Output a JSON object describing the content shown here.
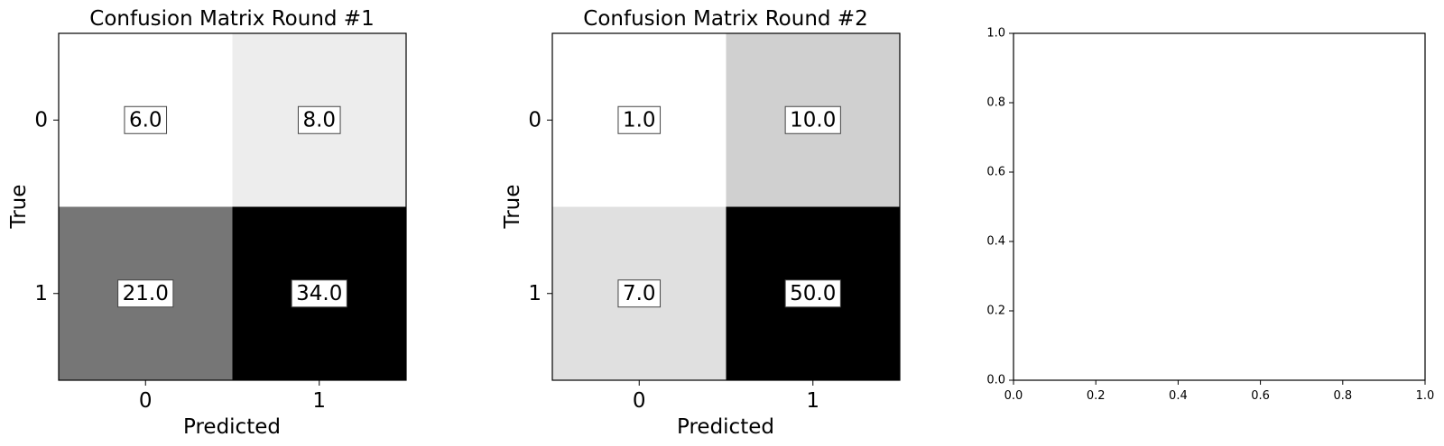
{
  "chart_data": [
    {
      "type": "heatmap",
      "title": "Confusion Matrix Round #1",
      "xlabel": "Predicted",
      "ylabel": "True",
      "x_categories": [
        "0",
        "1"
      ],
      "y_categories": [
        "0",
        "1"
      ],
      "values": [
        [
          6.0,
          8.0
        ],
        [
          21.0,
          34.0
        ]
      ],
      "value_labels": [
        [
          "6.0",
          "8.0"
        ],
        [
          "21.0",
          "34.0"
        ]
      ],
      "colormap": "Greys",
      "grid": false
    },
    {
      "type": "heatmap",
      "title": "Confusion Matrix Round #2",
      "xlabel": "Predicted",
      "ylabel": "True",
      "x_categories": [
        "0",
        "1"
      ],
      "y_categories": [
        "0",
        "1"
      ],
      "values": [
        [
          1.0,
          10.0
        ],
        [
          7.0,
          50.0
        ]
      ],
      "value_labels": [
        [
          "1.0",
          "10.0"
        ],
        [
          "7.0",
          "50.0"
        ]
      ],
      "colormap": "Greys",
      "grid": false
    },
    {
      "type": "scatter",
      "title": "",
      "xlabel": "",
      "ylabel": "",
      "xlim": [
        0.0,
        1.0
      ],
      "ylim": [
        0.0,
        1.0
      ],
      "x_ticks": [
        "0.0",
        "0.2",
        "0.4",
        "0.6",
        "0.8",
        "1.0"
      ],
      "y_ticks": [
        "0.0",
        "0.2",
        "0.4",
        "0.6",
        "0.8",
        "1.0"
      ],
      "series": []
    }
  ]
}
